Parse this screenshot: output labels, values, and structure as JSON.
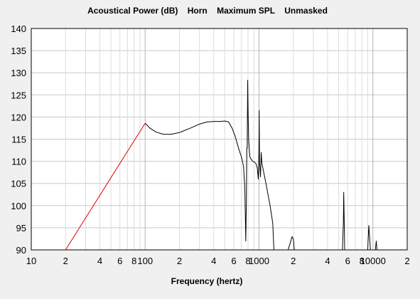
{
  "chart_data": {
    "type": "line",
    "title": "Acoustical Power (dB)    Horn    Maximum SPL    Unmasked",
    "xlabel": "Frequency (hertz)",
    "ylabel": "",
    "x_scale": "log",
    "xlim": [
      10,
      20000
    ],
    "ylim": [
      90,
      140
    ],
    "grid": true,
    "background": "#ffffff",
    "y_ticks": [
      90,
      95,
      100,
      105,
      110,
      115,
      120,
      125,
      130,
      135,
      140
    ],
    "x_tick_labels": [
      {
        "x": 10,
        "label": "10"
      },
      {
        "x": 20,
        "label": "2"
      },
      {
        "x": 40,
        "label": "4"
      },
      {
        "x": 60,
        "label": "6"
      },
      {
        "x": 80,
        "label": "8"
      },
      {
        "x": 100,
        "label": "100"
      },
      {
        "x": 200,
        "label": "2"
      },
      {
        "x": 400,
        "label": "4"
      },
      {
        "x": 600,
        "label": "6"
      },
      {
        "x": 800,
        "label": "8"
      },
      {
        "x": 1000,
        "label": "1000"
      },
      {
        "x": 2000,
        "label": "2"
      },
      {
        "x": 4000,
        "label": "4"
      },
      {
        "x": 6000,
        "label": "6"
      },
      {
        "x": 8000,
        "label": "8"
      },
      {
        "x": 10000,
        "label": "10000"
      },
      {
        "x": 20000,
        "label": "2"
      }
    ],
    "series": [
      {
        "color": "#e00000",
        "points": [
          [
            20,
            90
          ],
          [
            100,
            118.6
          ]
        ]
      },
      {
        "color": "#000000",
        "points": [
          [
            100,
            118.6
          ],
          [
            110,
            117.5
          ],
          [
            125,
            116.6
          ],
          [
            145,
            116.1
          ],
          [
            170,
            116.1
          ],
          [
            200,
            116.5
          ],
          [
            250,
            117.5
          ],
          [
            300,
            118.4
          ],
          [
            350,
            118.9
          ],
          [
            400,
            119.0
          ],
          [
            450,
            119.0
          ],
          [
            500,
            119.1
          ],
          [
            540,
            118.9
          ],
          [
            580,
            117.5
          ],
          [
            620,
            115.5
          ],
          [
            660,
            113.0
          ],
          [
            700,
            111.0
          ],
          [
            730,
            109.0
          ],
          [
            750,
            104.0
          ],
          [
            765,
            92.0
          ],
          [
            773,
            100.0
          ],
          [
            780,
            113.0
          ],
          [
            787,
            113.0
          ],
          [
            795,
            128.3
          ],
          [
            803,
            120.0
          ],
          [
            812,
            114.5
          ],
          [
            830,
            111.0
          ],
          [
            850,
            110.5
          ],
          [
            880,
            110.0
          ],
          [
            910,
            109.8
          ],
          [
            940,
            109.5
          ],
          [
            965,
            108.5
          ],
          [
            985,
            106.0
          ],
          [
            997,
            112.0
          ],
          [
            1003,
            121.5
          ],
          [
            1010,
            110.0
          ],
          [
            1030,
            106.5
          ],
          [
            1045,
            112.0
          ],
          [
            1060,
            109.5
          ],
          [
            1090,
            108.0
          ],
          [
            1150,
            105.0
          ],
          [
            1250,
            100.0
          ],
          [
            1320,
            96.0
          ],
          [
            1350,
            90.0
          ],
          [
            1800,
            90.0
          ],
          [
            1900,
            92.0
          ],
          [
            1950,
            93.0
          ],
          [
            2000,
            92.5
          ],
          [
            2040,
            90.0
          ],
          [
            5400,
            90.0
          ],
          [
            5500,
            96.0
          ],
          [
            5540,
            103.0
          ],
          [
            5600,
            96.0
          ],
          [
            5650,
            90.0
          ],
          [
            9000,
            90.0
          ],
          [
            9200,
            95.5
          ],
          [
            9350,
            93.0
          ],
          [
            9500,
            90.0
          ],
          [
            10500,
            90.0
          ],
          [
            10700,
            92.0
          ],
          [
            10850,
            90.0
          ]
        ]
      }
    ]
  }
}
